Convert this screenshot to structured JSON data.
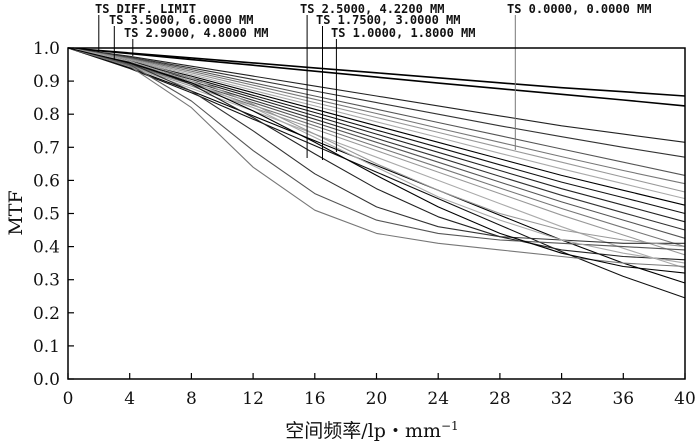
{
  "chart_data": {
    "type": "line",
    "xlabel": "空间频率/lp・mm",
    "xlabel_sup": "−1",
    "ylabel": "MTF",
    "xlim": [
      0,
      40
    ],
    "ylim": [
      0,
      1
    ],
    "x_ticks": [
      "0",
      "4",
      "8",
      "12",
      "16",
      "20",
      "24",
      "28",
      "32",
      "36",
      "40"
    ],
    "y_ticks": [
      "0.0",
      "0.1",
      "0.2",
      "0.3",
      "0.4",
      "0.5",
      "0.6",
      "0.7",
      "0.8",
      "0.9",
      "1.0"
    ],
    "grid": false,
    "legend_entries": [
      {
        "label": "TS DIFF. LIMIT",
        "x": 2.0
      },
      {
        "label": "TS 3.5000, 6.0000 MM",
        "x": 3.0
      },
      {
        "label": "TS 2.9000, 4.8000 MM",
        "x": 4.2
      },
      {
        "label": "TS 2.5000, 4.2200 MM",
        "x": 15.5
      },
      {
        "label": "TS 1.7500, 3.0000 MM",
        "x": 16.5
      },
      {
        "label": "TS 1.0000, 1.8000 MM",
        "x": 17.4
      },
      {
        "label": "TS 0.0000, 0.0000 MM",
        "x": 29.0
      }
    ],
    "series": [
      {
        "x": [
          0,
          4,
          8,
          12,
          16,
          20,
          24,
          28,
          32,
          36,
          40
        ],
        "y": [
          1.0,
          0.985,
          0.97,
          0.955,
          0.94,
          0.925,
          0.91,
          0.895,
          0.88,
          0.868,
          0.855
        ]
      },
      {
        "x": [
          0,
          4,
          8,
          12,
          16,
          20,
          24,
          28,
          32,
          36,
          40
        ],
        "y": [
          1.0,
          0.983,
          0.965,
          0.948,
          0.93,
          0.912,
          0.894,
          0.877,
          0.86,
          0.843,
          0.825
        ]
      },
      {
        "x": [
          0,
          4,
          8,
          12,
          16,
          20,
          24,
          28,
          32,
          36,
          40
        ],
        "y": [
          1.0,
          0.975,
          0.945,
          0.915,
          0.885,
          0.855,
          0.825,
          0.795,
          0.765,
          0.74,
          0.715
        ]
      },
      {
        "x": [
          0,
          4,
          8,
          12,
          16,
          20,
          24,
          28,
          32,
          36,
          40
        ],
        "y": [
          1.0,
          0.972,
          0.94,
          0.905,
          0.87,
          0.835,
          0.8,
          0.765,
          0.732,
          0.7,
          0.67
        ]
      },
      {
        "x": [
          0,
          4,
          8,
          12,
          16,
          20,
          24,
          28,
          32,
          36,
          40
        ],
        "y": [
          1.0,
          0.97,
          0.935,
          0.895,
          0.855,
          0.815,
          0.775,
          0.735,
          0.695,
          0.655,
          0.615
        ]
      },
      {
        "x": [
          0,
          4,
          8,
          12,
          16,
          20,
          24,
          28,
          32,
          36,
          40
        ],
        "y": [
          1.0,
          0.968,
          0.93,
          0.888,
          0.845,
          0.802,
          0.758,
          0.715,
          0.672,
          0.63,
          0.59
        ]
      },
      {
        "x": [
          0,
          4,
          8,
          12,
          16,
          20,
          24,
          28,
          32,
          36,
          40
        ],
        "y": [
          1.0,
          0.965,
          0.925,
          0.88,
          0.835,
          0.79,
          0.745,
          0.7,
          0.655,
          0.61,
          0.565
        ]
      },
      {
        "x": [
          0,
          4,
          8,
          12,
          16,
          20,
          24,
          28,
          32,
          36,
          40
        ],
        "y": [
          1.0,
          0.963,
          0.92,
          0.872,
          0.825,
          0.777,
          0.73,
          0.682,
          0.635,
          0.59,
          0.545
        ]
      },
      {
        "x": [
          0,
          4,
          8,
          12,
          16,
          20,
          24,
          28,
          32,
          36,
          40
        ],
        "y": [
          1.0,
          0.96,
          0.915,
          0.865,
          0.815,
          0.765,
          0.715,
          0.665,
          0.615,
          0.57,
          0.525
        ]
      },
      {
        "x": [
          0,
          4,
          8,
          12,
          16,
          20,
          24,
          28,
          32,
          36,
          40
        ],
        "y": [
          1.0,
          0.958,
          0.91,
          0.857,
          0.805,
          0.752,
          0.7,
          0.647,
          0.595,
          0.548,
          0.5
        ]
      },
      {
        "x": [
          0,
          4,
          8,
          12,
          16,
          20,
          24,
          28,
          32,
          36,
          40
        ],
        "y": [
          1.0,
          0.955,
          0.905,
          0.85,
          0.795,
          0.74,
          0.685,
          0.63,
          0.575,
          0.525,
          0.475
        ]
      },
      {
        "x": [
          0,
          4,
          8,
          12,
          16,
          20,
          24,
          28,
          32,
          36,
          40
        ],
        "y": [
          1.0,
          0.953,
          0.9,
          0.842,
          0.785,
          0.727,
          0.67,
          0.612,
          0.555,
          0.502,
          0.45
        ]
      },
      {
        "x": [
          0,
          4,
          8,
          12,
          16,
          20,
          24,
          28,
          32,
          36,
          40
        ],
        "y": [
          1.0,
          0.95,
          0.895,
          0.835,
          0.775,
          0.715,
          0.655,
          0.595,
          0.535,
          0.48,
          0.425
        ]
      },
      {
        "x": [
          0,
          4,
          8,
          12,
          16,
          20,
          24,
          28,
          32,
          36,
          40
        ],
        "y": [
          1.0,
          0.948,
          0.89,
          0.827,
          0.765,
          0.702,
          0.64,
          0.577,
          0.515,
          0.457,
          0.4
        ]
      },
      {
        "x": [
          0,
          4,
          8,
          12,
          16,
          20,
          24,
          28,
          32,
          36,
          40
        ],
        "y": [
          1.0,
          0.945,
          0.885,
          0.82,
          0.755,
          0.69,
          0.625,
          0.56,
          0.495,
          0.435,
          0.375
        ]
      },
      {
        "x": [
          0,
          4,
          8,
          12,
          16,
          20,
          24,
          28,
          32,
          36,
          40
        ],
        "y": [
          1.0,
          0.943,
          0.878,
          0.81,
          0.74,
          0.67,
          0.6,
          0.53,
          0.46,
          0.395,
          0.335
        ]
      },
      {
        "x": [
          0,
          4,
          8,
          12,
          16,
          20,
          24,
          28,
          32,
          36,
          40
        ],
        "y": [
          1.0,
          0.94,
          0.87,
          0.795,
          0.72,
          0.645,
          0.57,
          0.495,
          0.42,
          0.35,
          0.29
        ]
      },
      {
        "x": [
          0,
          4,
          8,
          12,
          16,
          20,
          24,
          28,
          32,
          36,
          40
        ],
        "y": [
          1.0,
          0.938,
          0.865,
          0.785,
          0.705,
          0.625,
          0.545,
          0.465,
          0.385,
          0.31,
          0.245
        ]
      },
      {
        "x": [
          0,
          4,
          8,
          12,
          16,
          20,
          24,
          28,
          32,
          36,
          40
        ],
        "y": [
          1.0,
          0.96,
          0.89,
          0.79,
          0.68,
          0.575,
          0.49,
          0.43,
          0.39,
          0.37,
          0.36
        ]
      },
      {
        "x": [
          0,
          4,
          8,
          12,
          16,
          20,
          24,
          28,
          32,
          36,
          40
        ],
        "y": [
          1.0,
          0.955,
          0.87,
          0.75,
          0.62,
          0.52,
          0.46,
          0.43,
          0.42,
          0.41,
          0.41
        ]
      },
      {
        "x": [
          0,
          4,
          8,
          12,
          16,
          20,
          24,
          28,
          32,
          36,
          40
        ],
        "y": [
          1.0,
          0.95,
          0.84,
          0.69,
          0.56,
          0.48,
          0.44,
          0.42,
          0.41,
          0.4,
          0.39
        ]
      },
      {
        "x": [
          0,
          4,
          8,
          12,
          16,
          20,
          24,
          28,
          32,
          36,
          40
        ],
        "y": [
          1.0,
          0.945,
          0.82,
          0.64,
          0.51,
          0.44,
          0.41,
          0.39,
          0.37,
          0.35,
          0.34
        ]
      },
      {
        "x": [
          0,
          4,
          8,
          12,
          16,
          20,
          24,
          28,
          32,
          36,
          40
        ],
        "y": [
          1.0,
          0.965,
          0.91,
          0.83,
          0.74,
          0.65,
          0.57,
          0.5,
          0.45,
          0.42,
          0.4
        ]
      },
      {
        "x": [
          0,
          4,
          8,
          12,
          16,
          20,
          24,
          28,
          32,
          36,
          40
        ],
        "y": [
          1.0,
          0.96,
          0.9,
          0.82,
          0.73,
          0.64,
          0.55,
          0.48,
          0.42,
          0.38,
          0.35
        ]
      },
      {
        "x": [
          0,
          4,
          8,
          12,
          16,
          20,
          24,
          28,
          32,
          36,
          40
        ],
        "y": [
          1.0,
          0.955,
          0.895,
          0.81,
          0.715,
          0.615,
          0.52,
          0.44,
          0.38,
          0.34,
          0.32
        ]
      }
    ]
  }
}
